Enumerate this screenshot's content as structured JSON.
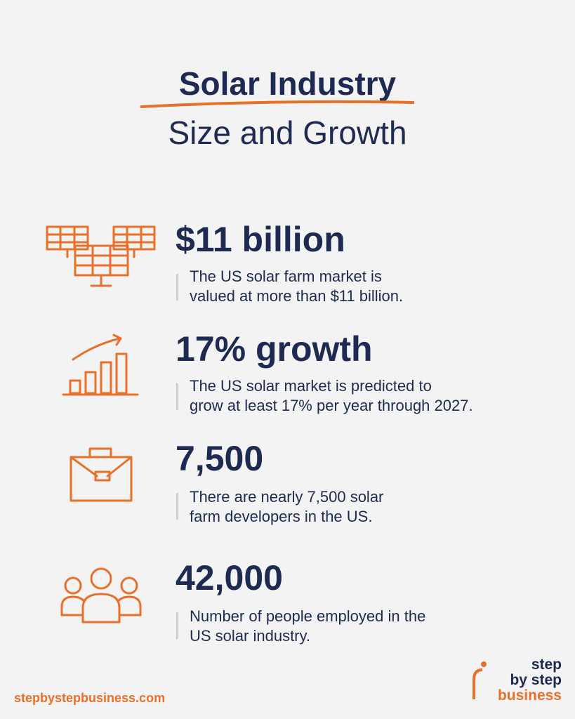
{
  "header": {
    "title": "Solar Industry",
    "subtitle": "Size and Growth"
  },
  "stats": [
    {
      "headline": "$11 billion",
      "lines": [
        "The US solar farm market is",
        "valued at more than $11 billion."
      ]
    },
    {
      "headline": "17% growth",
      "lines": [
        "The US solar market is predicted to",
        "grow at least 17% per year through 2027."
      ]
    },
    {
      "headline": "7,500",
      "lines": [
        "There are nearly 7,500 solar",
        "farm developers in the US."
      ]
    },
    {
      "headline": "42,000",
      "lines": [
        "Number of people employed in the",
        "US solar industry."
      ]
    }
  ],
  "footer": {
    "url": "stepbystepbusiness.com",
    "logo": [
      "step",
      "by step",
      "business"
    ]
  }
}
